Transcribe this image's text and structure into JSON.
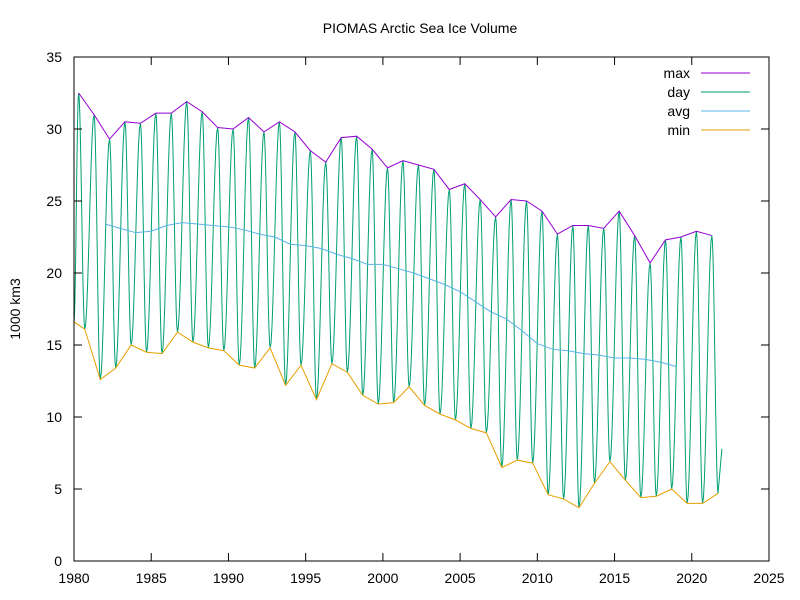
{
  "chart_data": {
    "type": "line",
    "title": "PIOMAS Arctic Sea Ice Volume",
    "xlabel": "",
    "ylabel": "1000 km3",
    "xlim": [
      1980,
      2025
    ],
    "ylim": [
      0,
      35
    ],
    "x_ticks": [
      1980,
      1985,
      1990,
      1995,
      2000,
      2005,
      2010,
      2015,
      2020,
      2025
    ],
    "y_ticks": [
      0,
      5,
      10,
      15,
      20,
      25,
      30,
      35
    ],
    "grid": false,
    "legend_position": "top-right",
    "colors": {
      "max": "#9400d3",
      "day": "#009e73",
      "avg": "#56b4e9",
      "min": "#e69f00",
      "axis": "#000000"
    },
    "series": [
      {
        "name": "max",
        "x": [
          1980.3,
          1981.3,
          1982.3,
          1983.3,
          1984.3,
          1985.3,
          1986.3,
          1987.3,
          1988.3,
          1989.3,
          1990.3,
          1991.3,
          1992.3,
          1993.3,
          1994.3,
          1995.3,
          1996.3,
          1997.3,
          1998.3,
          1999.3,
          2000.3,
          2001.3,
          2002.3,
          2003.3,
          2004.3,
          2005.3,
          2006.3,
          2007.3,
          2008.3,
          2009.3,
          2010.3,
          2011.3,
          2012.3,
          2013.3,
          2014.3,
          2015.3,
          2016.3,
          2017.3,
          2018.3,
          2019.3,
          2020.3,
          2021.3
        ],
        "values": [
          32.5,
          31.0,
          29.3,
          30.5,
          30.4,
          31.1,
          31.1,
          31.9,
          31.2,
          30.1,
          30.0,
          30.8,
          29.8,
          30.5,
          29.8,
          28.5,
          27.7,
          29.4,
          29.5,
          28.6,
          27.3,
          27.8,
          27.5,
          27.2,
          25.8,
          26.2,
          25.1,
          23.9,
          25.1,
          25.0,
          24.3,
          22.7,
          23.3,
          23.3,
          23.1,
          24.3,
          22.6,
          20.7,
          22.3,
          22.5,
          22.9,
          22.6
        ]
      },
      {
        "name": "day",
        "note": "",
        "x": [],
        "values": []
      },
      {
        "name": "avg",
        "x": [
          1982,
          1983,
          1984,
          1985,
          1986,
          1987,
          1988,
          1989,
          1990,
          1991,
          1992,
          1993,
          1994,
          1995,
          1996,
          1997,
          1998,
          1999,
          2000,
          2001,
          2002,
          2003,
          2004,
          2005,
          2006,
          2007,
          2008,
          2009,
          2010,
          2011,
          2012,
          2013,
          2014,
          2015,
          2016,
          2017,
          2018,
          2019
        ],
        "values": [
          23.4,
          23.1,
          22.8,
          22.9,
          23.3,
          23.5,
          23.4,
          23.3,
          23.2,
          23.0,
          22.7,
          22.5,
          22.0,
          21.9,
          21.7,
          21.3,
          21.0,
          20.6,
          20.6,
          20.3,
          20.0,
          19.6,
          19.2,
          18.7,
          18.0,
          17.3,
          16.8,
          16.0,
          15.1,
          14.7,
          14.6,
          14.4,
          14.3,
          14.1,
          14.1,
          14.0,
          13.8,
          13.5
        ]
      },
      {
        "name": "min",
        "x": [
          1980.0,
          1980.7,
          1981.7,
          1982.7,
          1983.7,
          1984.7,
          1985.7,
          1986.7,
          1987.7,
          1988.7,
          1989.7,
          1990.7,
          1991.7,
          1992.7,
          1993.7,
          1994.7,
          1995.7,
          1996.7,
          1997.7,
          1998.7,
          1999.7,
          2000.7,
          2001.7,
          2002.7,
          2003.7,
          2004.7,
          2005.7,
          2006.7,
          2007.7,
          2008.7,
          2009.7,
          2010.7,
          2011.7,
          2012.7,
          2013.7,
          2014.7,
          2015.7,
          2016.7,
          2017.7,
          2018.7,
          2019.7,
          2020.7,
          2021.7
        ],
        "values": [
          16.6,
          16.1,
          12.6,
          13.4,
          15.0,
          14.5,
          14.4,
          15.9,
          15.2,
          14.8,
          14.6,
          13.6,
          13.4,
          14.8,
          12.2,
          13.6,
          11.2,
          13.7,
          13.1,
          11.5,
          10.9,
          11.0,
          12.1,
          10.8,
          10.2,
          9.8,
          9.2,
          8.9,
          6.5,
          7.0,
          6.8,
          4.6,
          4.3,
          3.7,
          5.4,
          6.9,
          5.6,
          4.4,
          4.5,
          5.0,
          4.0,
          4.0,
          4.7
        ]
      }
    ]
  }
}
